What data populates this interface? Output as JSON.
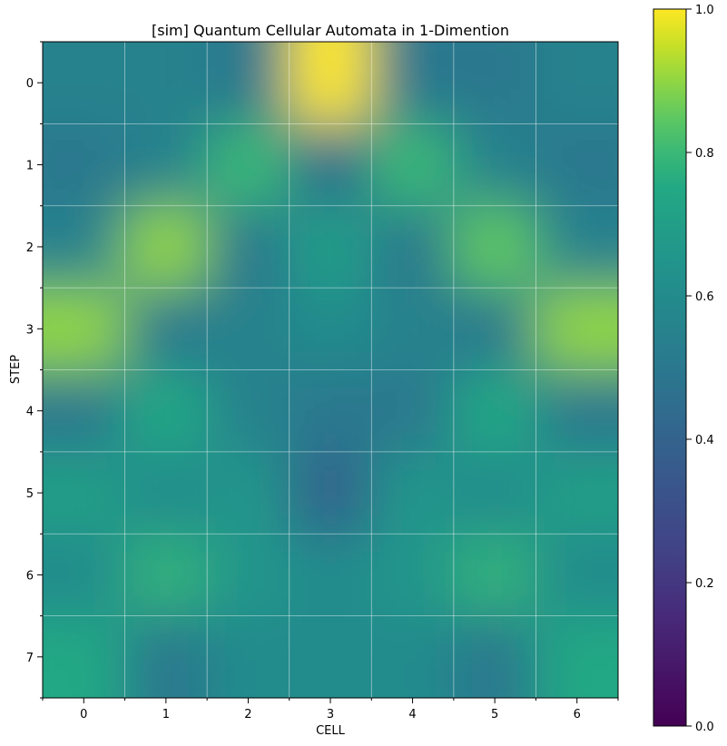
{
  "chart_data": {
    "type": "heatmap",
    "title": "[sim] Quantum Cellular Automata in 1-Dimention",
    "xlabel": "CELL",
    "ylabel": "STEP",
    "x_ticks": [
      "0",
      "1",
      "2",
      "3",
      "4",
      "5",
      "6"
    ],
    "y_ticks": [
      "0",
      "1",
      "2",
      "3",
      "4",
      "5",
      "6",
      "7"
    ],
    "colormap": "viridis",
    "interpolation": "bicubic",
    "grid": true,
    "colorbar": {
      "range": [
        0.0,
        1.0
      ],
      "ticks": [
        "0.0",
        "0.2",
        "0.4",
        "0.6",
        "0.8",
        "1.0"
      ]
    },
    "values": [
      [
        0.55,
        0.55,
        0.5,
        1.0,
        0.5,
        0.5,
        0.55
      ],
      [
        0.5,
        0.55,
        0.8,
        0.45,
        0.8,
        0.55,
        0.5
      ],
      [
        0.55,
        0.9,
        0.5,
        0.7,
        0.5,
        0.85,
        0.55
      ],
      [
        0.9,
        0.5,
        0.55,
        0.6,
        0.55,
        0.5,
        0.9
      ],
      [
        0.5,
        0.75,
        0.55,
        0.5,
        0.5,
        0.75,
        0.5
      ],
      [
        0.7,
        0.6,
        0.65,
        0.4,
        0.65,
        0.6,
        0.7
      ],
      [
        0.6,
        0.78,
        0.65,
        0.6,
        0.65,
        0.78,
        0.6
      ],
      [
        0.75,
        0.5,
        0.6,
        0.6,
        0.6,
        0.5,
        0.75
      ]
    ]
  }
}
